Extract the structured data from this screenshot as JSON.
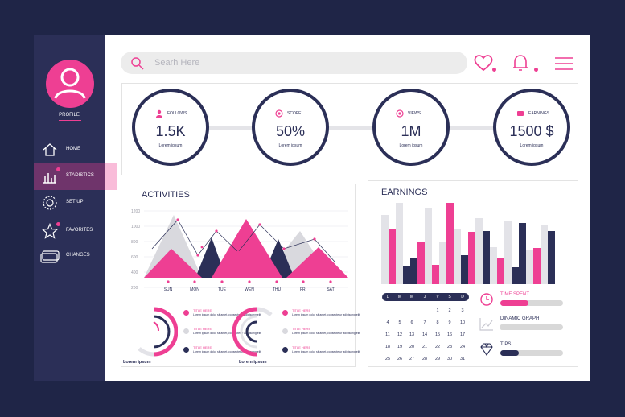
{
  "sidebar": {
    "profile_label": "PROFILE",
    "items": [
      {
        "label": "HOME",
        "icon": "home-icon",
        "active": false,
        "dot": false
      },
      {
        "label": "STADISTICS",
        "icon": "bar-chart-icon",
        "active": true,
        "dot": true
      },
      {
        "label": "SET UP",
        "icon": "gear-icon",
        "active": false,
        "dot": false
      },
      {
        "label": "FAVORITES",
        "icon": "star-icon",
        "active": false,
        "dot": true
      },
      {
        "label": "CHANGES",
        "icon": "layers-icon",
        "active": false,
        "dot": false
      }
    ]
  },
  "header": {
    "search_placeholder": "Searh Here",
    "icons": [
      "heart-icon",
      "bell-icon",
      "menu-icon"
    ]
  },
  "stats": [
    {
      "name": "FOLLOWS",
      "value": "1.5K",
      "sub": "Lorem ipsum",
      "icon": "person-icon"
    },
    {
      "name": "SCOPE",
      "value": "50%",
      "sub": "Lorem ipsum",
      "icon": "target-icon"
    },
    {
      "name": "VIEWS",
      "value": "1M",
      "sub": "Lorem ipsum",
      "icon": "eye-icon"
    },
    {
      "name": "EARNINGS",
      "value": "1500 $",
      "sub": "Lorem ipsum",
      "icon": "coin-icon"
    }
  ],
  "activities": {
    "title": "ACTIVITIES",
    "y_ticks": [
      "1200",
      "1000",
      "800",
      "600",
      "400",
      "200"
    ],
    "x_labels": [
      "SUN",
      "MON",
      "TUE",
      "WEN",
      "THU",
      "FRI",
      "SAT"
    ]
  },
  "earnings": {
    "title": "EARNINGS"
  },
  "donuts": [
    {
      "caption": "Lorem ipsum",
      "legend": [
        {
          "title": "TITLE HERE",
          "text": "Lorem ipsum dolor sit amet, consectetur adipiscing elit.",
          "color": "#ee3f93"
        },
        {
          "title": "TITLE HERE",
          "text": "Lorem ipsum dolor sit amet, consectetur adipiscing elit.",
          "color": "#d9d9de"
        },
        {
          "title": "TITLE HERE",
          "text": "Lorem ipsum dolor sit amet, consectetur adipiscing elit.",
          "color": "#2b2f57"
        }
      ]
    },
    {
      "caption": "Lorem ipsum",
      "legend": [
        {
          "title": "TITLE HERE",
          "text": "Lorem ipsum dolor sit amet, consectetur adipiscing elit.",
          "color": "#ee3f93"
        },
        {
          "title": "TITLE HERE",
          "text": "Lorem ipsum dolor sit amet, consectetur adipiscing elit.",
          "color": "#d9d9de"
        },
        {
          "title": "TITLE HERE",
          "text": "Lorem ipsum dolor sit amet, consectetur adipiscing elit.",
          "color": "#2b2f57"
        }
      ]
    }
  ],
  "calendar": {
    "days": [
      "L",
      "M",
      "M",
      "J",
      "V",
      "S",
      "D"
    ],
    "weeks": [
      [
        "",
        "",
        "",
        "",
        "1",
        "2",
        "3"
      ],
      [
        "4",
        "5",
        "6",
        "7",
        "8",
        "9",
        "10"
      ],
      [
        "11",
        "12",
        "13",
        "14",
        "15",
        "16",
        "17"
      ],
      [
        "18",
        "19",
        "20",
        "21",
        "22",
        "23",
        "24"
      ],
      [
        "25",
        "26",
        "27",
        "28",
        "29",
        "30",
        "31"
      ]
    ]
  },
  "progress": [
    {
      "label": "TIME SPENT",
      "fraction": 0.45,
      "icon": "clock-icon",
      "color": "#ee3f93"
    },
    {
      "label": "DINAMIC GRAPH",
      "fraction": 0.05,
      "icon": "trend-icon",
      "color": "#d8d8d8"
    },
    {
      "label": "TIPS",
      "fraction": 0.3,
      "icon": "diamond-icon",
      "color": "#2b2f57"
    }
  ],
  "colors": {
    "pink": "#ee3f93",
    "navy": "#2b2f57",
    "gray": "#d9d9de",
    "background": "#1f2547"
  }
}
